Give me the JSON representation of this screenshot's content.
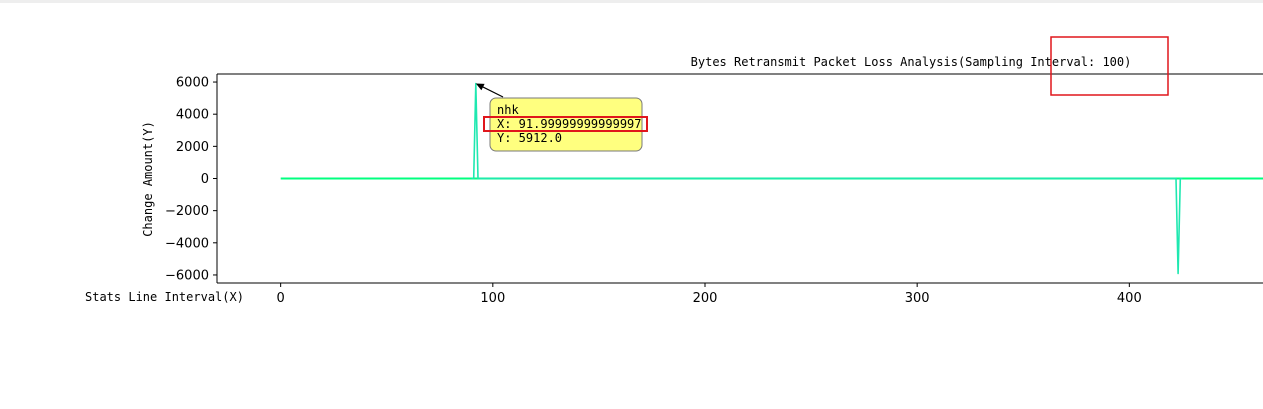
{
  "chart_data": {
    "type": "line",
    "title": "Bytes Retransmit Packet Loss Analysis(Sampling Interval: 100)",
    "xlabel": "Stats Line Interval(X)",
    "ylabel": "Change Amount(Y)",
    "xlim": [
      -30,
      463
    ],
    "ylim": [
      -6500,
      6500
    ],
    "xticks": [
      "0",
      "100",
      "200",
      "300",
      "400"
    ],
    "yticks": [
      "6000",
      "4000",
      "2000",
      "0",
      "−2000",
      "−4000",
      "−6000"
    ],
    "grid": false,
    "series": [
      {
        "color": "#00ff7f",
        "x": [
          0,
          463
        ],
        "y": [
          0,
          0
        ]
      },
      {
        "color": "#1ee8b0",
        "x": [
          90,
          91,
          92,
          93,
          94,
          421,
          422,
          423,
          424,
          425
        ],
        "y": [
          0,
          0,
          5912,
          0,
          0,
          0,
          0,
          -5912,
          0,
          0
        ]
      }
    ],
    "annotation": {
      "series_label": "nhk",
      "x_text": "X: 91.99999999999997",
      "y_text": "Y: 5912.0",
      "target_x": 92,
      "target_y": 5912
    },
    "highlight_boxes": 2
  },
  "colors": {
    "accent_line": "#00ff7f",
    "data_line": "#1ee8b0",
    "tooltip_fill": "#ffff7f",
    "highlight": "#e0161c"
  }
}
